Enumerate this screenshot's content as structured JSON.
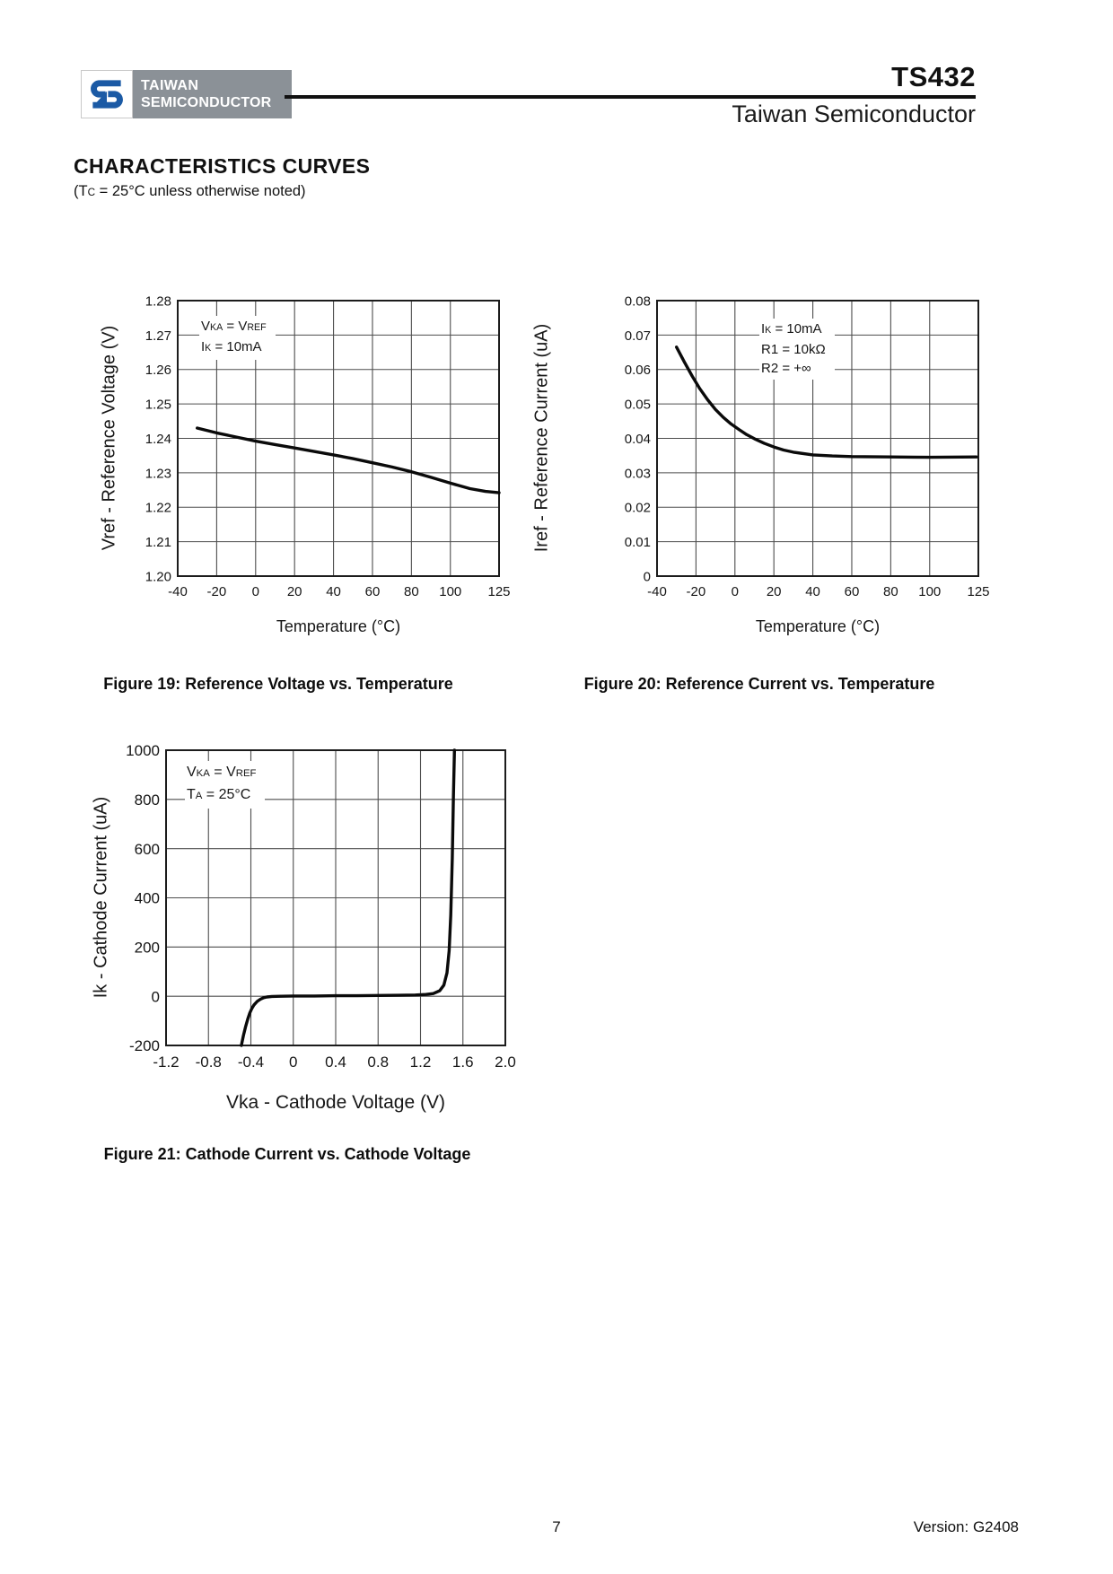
{
  "header": {
    "brand_line1": "TAIWAN",
    "brand_line2": "SEMICONDUCTOR",
    "part_number": "TS432",
    "company": "Taiwan Semiconductor",
    "logo_blue": "#1b5aa5",
    "logo_gray": "#8b9197"
  },
  "section": {
    "title": "CHARACTERISTICS CURVES",
    "subtitle": "(T~C~ = 25°C unless otherwise noted)"
  },
  "chart_data": [
    {
      "id": "figure-19",
      "type": "line",
      "caption": "Figure 19: Reference Voltage vs. Temperature",
      "xlabel": "Temperature (°C)",
      "ylabel": "Vref - Reference Voltage (V)",
      "xlim": [
        -40,
        125
      ],
      "ylim": [
        1.2,
        1.28
      ],
      "x_ticks": [
        -40,
        -20,
        0,
        20,
        40,
        60,
        80,
        100,
        125
      ],
      "x_tick_labels": [
        "-40",
        "-20",
        "0",
        "20",
        "40",
        "60",
        "80",
        "100",
        "125"
      ],
      "y_ticks": [
        1.2,
        1.21,
        1.22,
        1.23,
        1.24,
        1.25,
        1.26,
        1.27,
        1.28
      ],
      "y_tick_labels": [
        "1.20",
        "1.21",
        "1.22",
        "1.23",
        "1.24",
        "1.25",
        "1.26",
        "1.27",
        "1.28"
      ],
      "grid": true,
      "legend_position": "none",
      "annotation": [
        "V~KA~ = V~REF~",
        "I~K~ = 10mA"
      ],
      "series": [
        {
          "name": "Vref",
          "x": [
            -30,
            -20,
            -10,
            0,
            10,
            20,
            30,
            40,
            50,
            60,
            70,
            80,
            90,
            100,
            110,
            118,
            125
          ],
          "y": [
            1.243,
            1.2416,
            1.2404,
            1.2392,
            1.2382,
            1.2372,
            1.2362,
            1.2352,
            1.2341,
            1.2329,
            1.2317,
            1.2303,
            1.2287,
            1.227,
            1.2254,
            1.2246,
            1.2242
          ]
        }
      ]
    },
    {
      "id": "figure-20",
      "type": "line",
      "caption": "Figure 20: Reference Current vs. Temperature",
      "xlabel": "Temperature (°C)",
      "ylabel": "Iref - Reference Current (uA)",
      "xlim": [
        -40,
        125
      ],
      "ylim": [
        0,
        0.08
      ],
      "x_ticks": [
        -40,
        -20,
        0,
        20,
        40,
        60,
        80,
        100,
        125
      ],
      "x_tick_labels": [
        "-40",
        "-20",
        "0",
        "20",
        "40",
        "60",
        "80",
        "100",
        "125"
      ],
      "y_ticks": [
        0,
        0.01,
        0.02,
        0.03,
        0.04,
        0.05,
        0.06,
        0.07,
        0.08
      ],
      "y_tick_labels": [
        "0",
        "0.01",
        "0.02",
        "0.03",
        "0.04",
        "0.05",
        "0.06",
        "0.07",
        "0.08"
      ],
      "grid": true,
      "legend_position": "none",
      "annotation": [
        "I~K~ = 10mA",
        "R1 = 10kΩ",
        "R2 = +∞"
      ],
      "series": [
        {
          "name": "Iref",
          "x": [
            -30,
            -26,
            -22,
            -18,
            -14,
            -10,
            -6,
            -2,
            2,
            6,
            10,
            15,
            20,
            25,
            30,
            40,
            50,
            60,
            80,
            100,
            124
          ],
          "y": [
            0.0665,
            0.0622,
            0.0581,
            0.0544,
            0.0512,
            0.0484,
            0.0461,
            0.0442,
            0.0426,
            0.0411,
            0.0399,
            0.0386,
            0.0375,
            0.0366,
            0.036,
            0.0352,
            0.0349,
            0.0347,
            0.0346,
            0.0345,
            0.0346
          ]
        }
      ]
    },
    {
      "id": "figure-21",
      "type": "line",
      "caption": "Figure 21: Cathode Current vs. Cathode Voltage",
      "xlabel": "Vka - Cathode Voltage (V)",
      "ylabel": "Ik - Cathode Current (uA)",
      "xlim": [
        -1.2,
        2.0
      ],
      "ylim": [
        -200,
        1000
      ],
      "x_ticks": [
        -1.2,
        -0.8,
        -0.4,
        0,
        0.4,
        0.8,
        1.2,
        1.6,
        2.0
      ],
      "x_tick_labels": [
        "-1.2",
        "-0.8",
        "-0.4",
        "0",
        "0.4",
        "0.8",
        "1.2",
        "1.6",
        "2.0"
      ],
      "y_ticks": [
        -200,
        0,
        200,
        400,
        600,
        800,
        1000
      ],
      "y_tick_labels": [
        "-200",
        "0",
        "200",
        "400",
        "600",
        "800",
        "1000"
      ],
      "grid": true,
      "legend_position": "none",
      "annotation": [
        "V~KA~ = V~REF~",
        "T~A~ = 25°C"
      ],
      "series": [
        {
          "name": "Ik",
          "x": [
            -0.49,
            -0.47,
            -0.45,
            -0.43,
            -0.41,
            -0.39,
            -0.37,
            -0.34,
            -0.31,
            -0.28,
            -0.25,
            -0.2,
            -0.12,
            0,
            0.2,
            0.4,
            0.6,
            0.8,
            1.0,
            1.15,
            1.25,
            1.32,
            1.38,
            1.42,
            1.45,
            1.47,
            1.485,
            1.5,
            1.51,
            1.52
          ],
          "y": [
            -200,
            -160,
            -124,
            -93,
            -68,
            -49,
            -35,
            -21,
            -12,
            -6,
            -3,
            -1,
            0,
            1,
            1,
            2,
            2,
            3,
            4,
            5,
            7,
            11,
            22,
            45,
            95,
            185,
            330,
            560,
            800,
            1000
          ]
        }
      ]
    }
  ],
  "footer": {
    "page_number": "7",
    "version": "Version: G2408"
  }
}
